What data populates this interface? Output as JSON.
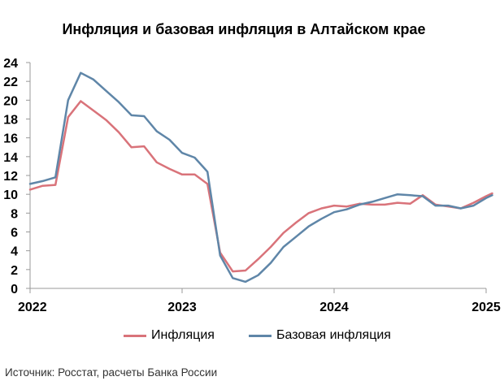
{
  "chart_data": {
    "type": "line",
    "title": "Инфляция и базовая инфляция в Алтайском крае",
    "xlabel": "",
    "ylabel": "",
    "xlim": [
      2022,
      2025
    ],
    "ylim": [
      0,
      24
    ],
    "yticks": [
      "0",
      "2",
      "4",
      "6",
      "8",
      "10",
      "12",
      "14",
      "16",
      "18",
      "20",
      "22",
      "24"
    ],
    "xticks": [
      "2022",
      "2023",
      "2024",
      "2025"
    ],
    "grid": false,
    "legend_position": "bottom",
    "series": [
      {
        "name": "Инфляция",
        "color": "#d9737a",
        "x": [
          2022.0,
          2022.083,
          2022.167,
          2022.25,
          2022.333,
          2022.417,
          2022.5,
          2022.583,
          2022.667,
          2022.75,
          2022.833,
          2022.917,
          2023.0,
          2023.083,
          2023.167,
          2023.25,
          2023.333,
          2023.417,
          2023.5,
          2023.583,
          2023.667,
          2023.75,
          2023.833,
          2023.917,
          2024.0,
          2024.083,
          2024.167,
          2024.25,
          2024.333,
          2024.417,
          2024.5,
          2024.583,
          2024.667,
          2024.75,
          2024.833,
          2024.917,
          2025.0,
          2025.04
        ],
        "values": [
          10.5,
          10.9,
          11.0,
          18.2,
          19.9,
          18.9,
          17.9,
          16.6,
          15.0,
          15.1,
          13.4,
          12.7,
          12.1,
          12.1,
          11.1,
          3.8,
          1.8,
          1.9,
          3.1,
          4.4,
          5.9,
          7.0,
          8.0,
          8.5,
          8.8,
          8.7,
          9.0,
          8.9,
          8.9,
          9.1,
          9.0,
          9.9,
          8.9,
          8.7,
          8.5,
          9.1,
          9.8,
          10.1
        ]
      },
      {
        "name": "Базовая инфляция",
        "color": "#5f86a8",
        "x": [
          2022.0,
          2022.083,
          2022.167,
          2022.25,
          2022.333,
          2022.417,
          2022.5,
          2022.583,
          2022.667,
          2022.75,
          2022.833,
          2022.917,
          2023.0,
          2023.083,
          2023.167,
          2023.25,
          2023.333,
          2023.417,
          2023.5,
          2023.583,
          2023.667,
          2023.75,
          2023.833,
          2023.917,
          2024.0,
          2024.083,
          2024.167,
          2024.25,
          2024.333,
          2024.417,
          2024.5,
          2024.583,
          2024.667,
          2024.75,
          2024.833,
          2024.917,
          2025.0,
          2025.04
        ],
        "values": [
          11.1,
          11.4,
          11.8,
          20.0,
          22.9,
          22.2,
          21.0,
          19.8,
          18.4,
          18.3,
          16.7,
          15.8,
          14.4,
          13.9,
          12.4,
          3.5,
          1.1,
          0.7,
          1.4,
          2.7,
          4.4,
          5.5,
          6.6,
          7.4,
          8.1,
          8.4,
          8.9,
          9.2,
          9.6,
          10.0,
          9.9,
          9.8,
          8.8,
          8.8,
          8.5,
          8.8,
          9.6,
          9.9
        ]
      }
    ]
  },
  "source_text": "Источник: Росстат, расчеты Банка России"
}
